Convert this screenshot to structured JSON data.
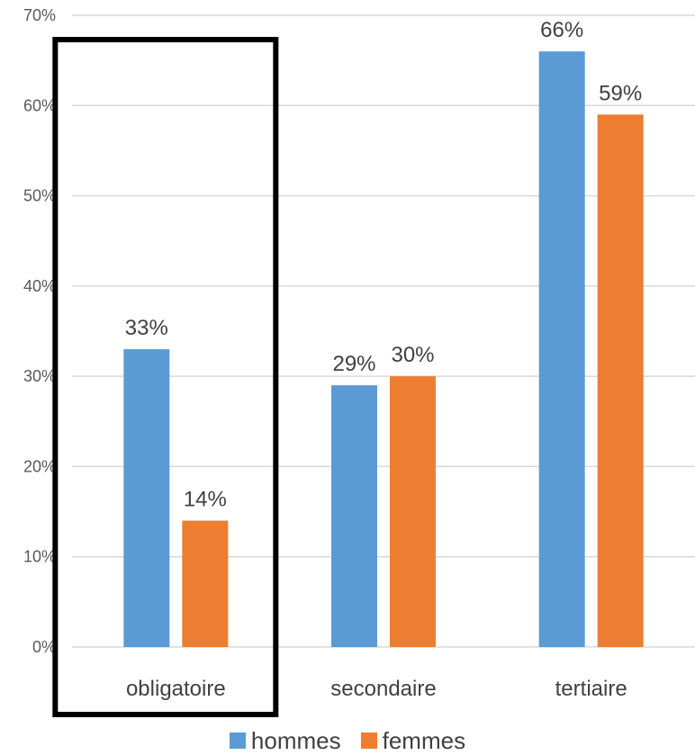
{
  "chart_data": {
    "type": "bar",
    "categories": [
      "obligatoire",
      "secondaire",
      "tertiaire"
    ],
    "series": [
      {
        "name": "hommes",
        "values": [
          33,
          29,
          66
        ],
        "labels": [
          "33%",
          "29%",
          "66%"
        ],
        "color": "#5B9BD5"
      },
      {
        "name": "femmes",
        "values": [
          14,
          30,
          59
        ],
        "labels": [
          "14%",
          "30%",
          "59%"
        ],
        "color": "#ED7D31"
      }
    ],
    "ylim": [
      0,
      70
    ],
    "yticks": [
      0,
      10,
      20,
      30,
      40,
      50,
      60,
      70
    ],
    "ytick_labels": [
      "0%",
      "10%",
      "20%",
      "30%",
      "40%",
      "50%",
      "60%",
      "70%"
    ],
    "grid": true,
    "legend_position": "bottom",
    "highlight_category": "obligatoire",
    "highlight_color": "#000000",
    "gridline_color": "#D9D9D9"
  }
}
